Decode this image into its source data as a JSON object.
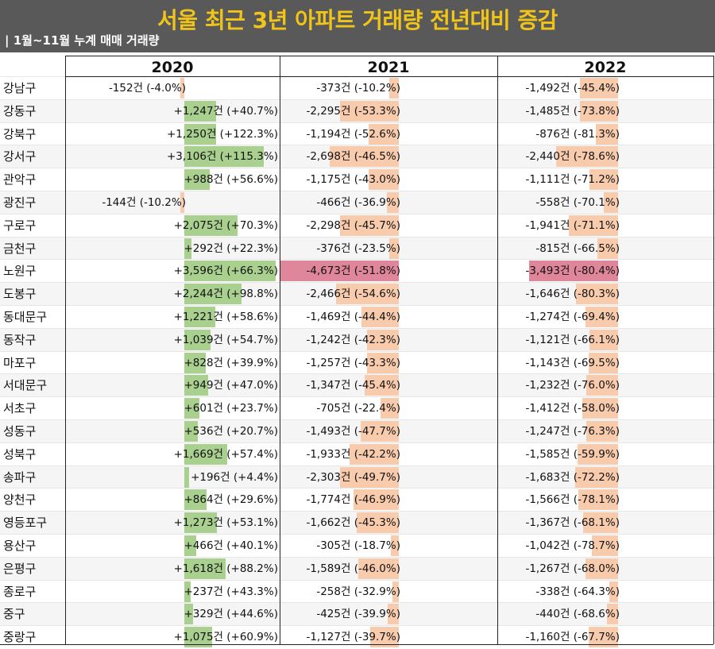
{
  "title": "서울 최근 3년 아파트 거래량 전년대비 증감",
  "subtitle": "| 1월~11월 누계 매매 거래량",
  "colors": {
    "increase": "#a9d08e",
    "decrease_light": "#f8cbad",
    "decrease_strong": "#e0869a",
    "header_bg": "#595959",
    "title": "#f0c419"
  },
  "chart_data": {
    "type": "table",
    "years": [
      "2020",
      "2021",
      "2022"
    ],
    "districts": [
      "강남구",
      "강동구",
      "강북구",
      "강서구",
      "관악구",
      "광진구",
      "구로구",
      "금천구",
      "노원구",
      "도봉구",
      "동대문구",
      "동작구",
      "마포구",
      "서대문구",
      "서초구",
      "성동구",
      "성북구",
      "송파구",
      "양천구",
      "영등포구",
      "용산구",
      "은평구",
      "종로구",
      "중구",
      "중랑구"
    ],
    "change": {
      "2020": [
        -152,
        1247,
        1250,
        3106,
        988,
        -144,
        2075,
        292,
        3596,
        2244,
        1221,
        1039,
        828,
        949,
        601,
        536,
        1669,
        196,
        864,
        1273,
        466,
        1618,
        237,
        329,
        1075
      ],
      "2021": [
        -373,
        -2295,
        -1194,
        -2698,
        -1175,
        -466,
        -2298,
        -376,
        -4673,
        -2466,
        -1469,
        -1242,
        -1257,
        -1347,
        -705,
        -1493,
        -1933,
        -2303,
        -1774,
        -1662,
        -305,
        -1589,
        -258,
        -425,
        -1127
      ],
      "2022": [
        -1492,
        -1485,
        -876,
        -2440,
        -1111,
        -558,
        -1941,
        -815,
        -3493,
        -1646,
        -1274,
        -1121,
        -1143,
        -1232,
        -1412,
        -1247,
        -1585,
        -1683,
        -1566,
        -1367,
        -1042,
        -1267,
        -338,
        -440,
        -1160
      ]
    },
    "labels": {
      "2020": [
        "-152건 (-4.0%)",
        "+1,247건 (+40.7%)",
        "+1,250건 (+122.3%)",
        "+3,106건 (+115.3%)",
        "+988건 (+56.6%)",
        "-144건 (-10.2%)",
        "+2,075건 (+70.3%)",
        "+292건 (+22.3%)",
        "+3,596건 (+66.3%)",
        "+2,244건 (+98.8%)",
        "+1,221건 (+58.6%)",
        "+1,039건 (+54.7%)",
        "+828건 (+39.9%)",
        "+949건 (+47.0%)",
        "+601건 (+23.7%)",
        "+536건 (+20.7%)",
        "+1,669건 (+57.4%)",
        "+196건 (+4.4%)",
        "+864건 (+29.6%)",
        "+1,273건 (+53.1%)",
        "+466건 (+40.1%)",
        "+1,618건 (+88.2%)",
        "+237건 (+43.3%)",
        "+329건 (+44.6%)",
        "+1,075건 (+60.9%)"
      ],
      "2021": [
        "-373건 (-10.2%)",
        "-2,295건 (-53.3%)",
        "-1,194건 (-52.6%)",
        "-2,698건 (-46.5%)",
        "-1,175건 (-43.0%)",
        "-466건 (-36.9%)",
        "-2,298건 (-45.7%)",
        "-376건 (-23.5%)",
        "-4,673건 (-51.8%)",
        "-2,466건 (-54.6%)",
        "-1,469건 (-44.4%)",
        "-1,242건 (-42.3%)",
        "-1,257건 (-43.3%)",
        "-1,347건 (-45.4%)",
        "-705건 (-22.4%)",
        "-1,493건 (-47.7%)",
        "-1,933건 (-42.2%)",
        "-2,303건 (-49.7%)",
        "-1,774건 (-46.9%)",
        "-1,662건 (-45.3%)",
        "-305건 (-18.7%)",
        "-1,589건 (-46.0%)",
        "-258건 (-32.9%)",
        "-425건 (-39.9%)",
        "-1,127건 (-39.7%)"
      ],
      "2022": [
        "-1,492건 (-45.4%)",
        "-1,485건 (-73.8%)",
        "-876건 (-81.3%)",
        "-2,440건 (-78.6%)",
        "-1,111건 (-71.2%)",
        "-558건 (-70.1%)",
        "-1,941건 (-71.1%)",
        "-815건 (-66.5%)",
        "-3,493건 (-80.4%)",
        "-1,646건 (-80.3%)",
        "-1,274건 (-69.4%)",
        "-1,121건 (-66.1%)",
        "-1,143건 (-69.5%)",
        "-1,232건 (-76.0%)",
        "-1,412건 (-58.0%)",
        "-1,247건 (-76.3%)",
        "-1,585건 (-59.9%)",
        "-1,683건 (-72.2%)",
        "-1,566건 (-78.1%)",
        "-1,367건 (-68.1%)",
        "-1,042건 (-78.7%)",
        "-1,267건 (-68.0%)",
        "-338건 (-64.3%)",
        "-440건 (-68.6%)",
        "-1,160건 (-67.7%)"
      ]
    }
  }
}
